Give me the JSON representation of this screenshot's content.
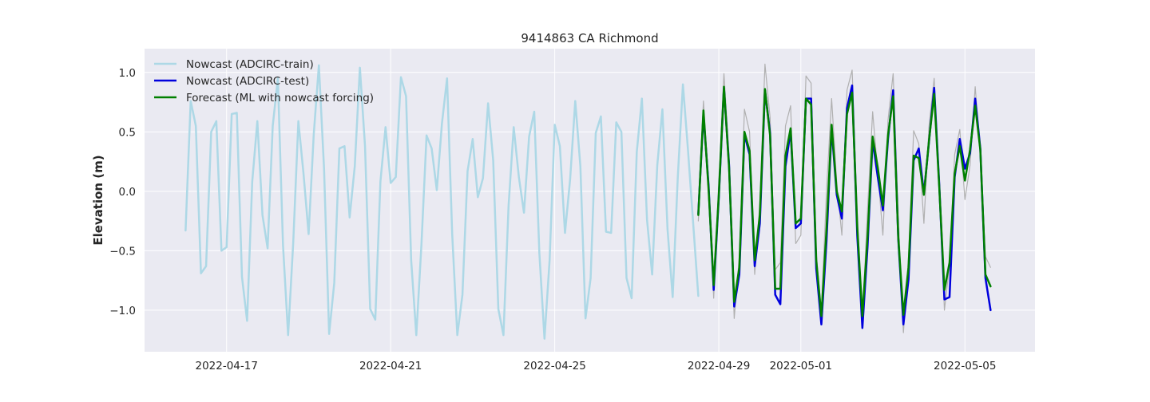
{
  "chart_data": {
    "type": "line",
    "title": "9414863 CA Richmond",
    "xlabel": "",
    "ylabel": "Elevation (m)",
    "xlim": [
      "2022-04-15T00:00",
      "2022-05-06T17:00"
    ],
    "ylim": [
      -1.35,
      1.2
    ],
    "x_ticks": [
      "2022-04-17",
      "2022-04-21",
      "2022-04-25",
      "2022-04-29",
      "2022-05-01",
      "2022-05-05"
    ],
    "y_ticks": [
      -1.0,
      -0.5,
      0.0,
      0.5,
      1.0
    ],
    "y_tick_labels": [
      "−1.0",
      "−0.5",
      "0.0",
      "0.5",
      "1.0"
    ],
    "grid": true,
    "legend_position": "top-left",
    "series": [
      {
        "name": "Nowcast (ADCIRC-train)",
        "color": "#add8e6",
        "x": [
          "2022-04-16T00:00",
          "2022-04-16T03:00",
          "2022-04-16T06:00",
          "2022-04-16T09:00",
          "2022-04-16T12:00",
          "2022-04-16T15:00",
          "2022-04-16T18:00",
          "2022-04-16T21:00",
          "2022-04-17T00:00",
          "2022-04-17T03:00",
          "2022-04-17T06:00",
          "2022-04-17T09:00",
          "2022-04-17T12:00",
          "2022-04-17T15:00",
          "2022-04-17T18:00",
          "2022-04-17T21:00",
          "2022-04-18T00:00",
          "2022-04-18T03:00",
          "2022-04-18T06:00",
          "2022-04-18T09:00",
          "2022-04-18T12:00",
          "2022-04-18T15:00",
          "2022-04-18T18:00",
          "2022-04-18T21:00",
          "2022-04-19T00:00",
          "2022-04-19T03:00",
          "2022-04-19T06:00",
          "2022-04-19T09:00",
          "2022-04-19T12:00",
          "2022-04-19T15:00",
          "2022-04-19T18:00",
          "2022-04-19T21:00",
          "2022-04-20T00:00",
          "2022-04-20T03:00",
          "2022-04-20T06:00",
          "2022-04-20T09:00",
          "2022-04-20T12:00",
          "2022-04-20T15:00",
          "2022-04-20T18:00",
          "2022-04-20T21:00",
          "2022-04-21T00:00",
          "2022-04-21T03:00",
          "2022-04-21T06:00",
          "2022-04-21T09:00",
          "2022-04-21T12:00",
          "2022-04-21T15:00",
          "2022-04-21T18:00",
          "2022-04-21T21:00",
          "2022-04-22T00:00",
          "2022-04-22T03:00",
          "2022-04-22T06:00",
          "2022-04-22T09:00",
          "2022-04-22T12:00",
          "2022-04-22T15:00",
          "2022-04-22T18:00",
          "2022-04-22T21:00",
          "2022-04-23T00:00",
          "2022-04-23T03:00",
          "2022-04-23T06:00",
          "2022-04-23T09:00",
          "2022-04-23T12:00",
          "2022-04-23T15:00",
          "2022-04-23T18:00",
          "2022-04-23T21:00",
          "2022-04-24T00:00",
          "2022-04-24T03:00",
          "2022-04-24T06:00",
          "2022-04-24T09:00",
          "2022-04-24T12:00",
          "2022-04-24T15:00",
          "2022-04-24T18:00",
          "2022-04-24T21:00",
          "2022-04-25T00:00",
          "2022-04-25T03:00",
          "2022-04-25T06:00",
          "2022-04-25T09:00",
          "2022-04-25T12:00",
          "2022-04-25T15:00",
          "2022-04-25T18:00",
          "2022-04-25T21:00",
          "2022-04-26T00:00",
          "2022-04-26T03:00",
          "2022-04-26T06:00",
          "2022-04-26T09:00",
          "2022-04-26T12:00",
          "2022-04-26T15:00",
          "2022-04-26T18:00",
          "2022-04-26T21:00",
          "2022-04-27T00:00",
          "2022-04-27T03:00",
          "2022-04-27T06:00",
          "2022-04-27T09:00",
          "2022-04-27T12:00",
          "2022-04-27T15:00",
          "2022-04-27T18:00",
          "2022-04-27T21:00",
          "2022-04-28T00:00",
          "2022-04-28T03:00",
          "2022-04-28T06:00",
          "2022-04-28T09:00",
          "2022-04-28T12:00",
          "2022-04-28T15:00",
          "2022-04-28T18:00",
          "2022-04-28T21:00"
        ],
        "values": [
          -0.33,
          0.76,
          0.55,
          -0.69,
          -0.63,
          0.5,
          0.59,
          -0.5,
          -0.47,
          0.65,
          0.66,
          -0.72,
          -1.09,
          0.08,
          0.59,
          -0.2,
          -0.48,
          0.55,
          0.95,
          -0.45,
          -1.21,
          -0.43,
          0.59,
          0.15,
          -0.36,
          0.48,
          1.06,
          0.2,
          -1.2,
          -0.77,
          0.36,
          0.38,
          -0.22,
          0.21,
          1.04,
          0.38,
          -0.99,
          -1.08,
          0.08,
          0.54,
          0.07,
          0.12,
          0.96,
          0.8,
          -0.58,
          -1.21,
          -0.45,
          0.47,
          0.36,
          0.01,
          0.57,
          0.95,
          -0.36,
          -1.21,
          -0.87,
          0.17,
          0.44,
          -0.05,
          0.11,
          0.74,
          0.26,
          -0.99,
          -1.21,
          -0.12,
          0.54,
          0.12,
          -0.18,
          0.46,
          0.67,
          -0.52,
          -1.24,
          -0.58,
          0.56,
          0.38,
          -0.35,
          0.1,
          0.76,
          0.21,
          -1.07,
          -0.73,
          0.49,
          0.63,
          -0.34,
          -0.35,
          0.58,
          0.5,
          -0.73,
          -0.9,
          0.33,
          0.78,
          -0.24,
          -0.7,
          0.22,
          0.69,
          -0.32,
          -0.89,
          0.12,
          0.9,
          0.34,
          -0.27,
          -0.88,
          null,
          null,
          null
        ]
      },
      {
        "name": "Nowcast (ADCIRC-test)",
        "color": "#0000dd",
        "x": [
          "2022-04-28T12:00",
          "2022-04-28T15:00",
          "2022-04-28T18:00",
          "2022-04-28T21:00",
          "2022-04-29T00:00",
          "2022-04-29T03:00",
          "2022-04-29T06:00",
          "2022-04-29T09:00",
          "2022-04-29T12:00",
          "2022-04-29T15:00",
          "2022-04-29T18:00",
          "2022-04-29T21:00",
          "2022-04-30T00:00",
          "2022-04-30T03:00",
          "2022-04-30T06:00",
          "2022-04-30T09:00",
          "2022-04-30T12:00",
          "2022-04-30T15:00",
          "2022-04-30T18:00",
          "2022-04-30T21:00",
          "2022-05-01T00:00",
          "2022-05-01T03:00",
          "2022-05-01T06:00",
          "2022-05-01T09:00",
          "2022-05-01T12:00",
          "2022-05-01T15:00",
          "2022-05-01T18:00",
          "2022-05-01T21:00",
          "2022-05-02T00:00",
          "2022-05-02T03:00",
          "2022-05-02T06:00",
          "2022-05-02T09:00",
          "2022-05-02T12:00",
          "2022-05-02T15:00",
          "2022-05-02T18:00",
          "2022-05-02T21:00",
          "2022-05-03T00:00",
          "2022-05-03T03:00",
          "2022-05-03T06:00",
          "2022-05-03T09:00",
          "2022-05-03T12:00",
          "2022-05-03T15:00",
          "2022-05-03T18:00",
          "2022-05-03T21:00",
          "2022-05-04T00:00",
          "2022-05-04T03:00",
          "2022-05-04T06:00",
          "2022-05-04T09:00",
          "2022-05-04T12:00",
          "2022-05-04T15:00",
          "2022-05-04T18:00",
          "2022-05-04T21:00",
          "2022-05-05T00:00",
          "2022-05-05T03:00",
          "2022-05-05T06:00",
          "2022-05-05T09:00",
          "2022-05-05T12:00",
          "2022-05-05T15:00",
          "2022-05-05T18:00",
          "2022-05-05T21:00",
          "2022-05-06T00:00",
          "2022-05-06T03:00",
          "2022-05-06T06:00",
          "2022-05-06T09:00",
          "2022-05-06T12:00",
          "2022-05-06T15:00"
        ],
        "values": [
          -0.19,
          0.65,
          0.05,
          -0.83,
          -0.05,
          0.87,
          0.22,
          -0.97,
          -0.7,
          0.48,
          0.31,
          -0.63,
          -0.27,
          0.85,
          0.49,
          -0.87,
          -0.95,
          0.21,
          0.51,
          -0.31,
          -0.27,
          0.78,
          0.78,
          -0.65,
          -1.12,
          -0.42,
          0.53,
          -0.03,
          -0.23,
          0.7,
          0.89,
          -0.37,
          -1.15,
          -0.47,
          0.43,
          0.12,
          -0.16,
          0.44,
          0.85,
          -0.4,
          -1.12,
          -0.74,
          0.26,
          0.36,
          -0.02,
          0.42,
          0.87,
          0.05,
          -0.91,
          -0.89,
          0.12,
          0.44,
          0.19,
          0.32,
          0.78,
          0.36,
          -0.73,
          -1.0,
          null,
          null,
          null,
          null,
          null,
          null,
          null,
          null
        ]
      },
      {
        "name": "Forecast (ML with nowcast forcing)",
        "color": "#008000",
        "x": [
          "2022-04-28T12:00",
          "2022-04-28T15:00",
          "2022-04-28T18:00",
          "2022-04-28T21:00",
          "2022-04-29T00:00",
          "2022-04-29T03:00",
          "2022-04-29T06:00",
          "2022-04-29T09:00",
          "2022-04-29T12:00",
          "2022-04-29T15:00",
          "2022-04-29T18:00",
          "2022-04-29T21:00",
          "2022-04-30T00:00",
          "2022-04-30T03:00",
          "2022-04-30T06:00",
          "2022-04-30T09:00",
          "2022-04-30T12:00",
          "2022-04-30T15:00",
          "2022-04-30T18:00",
          "2022-04-30T21:00",
          "2022-05-01T00:00",
          "2022-05-01T03:00",
          "2022-05-01T06:00",
          "2022-05-01T09:00",
          "2022-05-01T12:00",
          "2022-05-01T15:00",
          "2022-05-01T18:00",
          "2022-05-01T21:00",
          "2022-05-02T00:00",
          "2022-05-02T03:00",
          "2022-05-02T06:00",
          "2022-05-02T09:00",
          "2022-05-02T12:00",
          "2022-05-02T15:00",
          "2022-05-02T18:00",
          "2022-05-02T21:00",
          "2022-05-03T00:00",
          "2022-05-03T03:00",
          "2022-05-03T06:00",
          "2022-05-03T09:00",
          "2022-05-03T12:00",
          "2022-05-03T15:00",
          "2022-05-03T18:00",
          "2022-05-03T21:00",
          "2022-05-04T00:00",
          "2022-05-04T03:00",
          "2022-05-04T06:00",
          "2022-05-04T09:00",
          "2022-05-04T12:00",
          "2022-05-04T15:00",
          "2022-05-04T18:00",
          "2022-05-04T21:00",
          "2022-05-05T00:00",
          "2022-05-05T03:00",
          "2022-05-05T06:00",
          "2022-05-05T09:00",
          "2022-05-05T12:00",
          "2022-05-05T15:00",
          "2022-05-05T18:00",
          "2022-05-05T21:00"
        ],
        "values": [
          -0.2,
          0.68,
          0.02,
          -0.79,
          -0.03,
          0.88,
          0.2,
          -0.93,
          -0.64,
          0.5,
          0.34,
          -0.58,
          -0.2,
          0.86,
          0.47,
          -0.82,
          -0.82,
          0.3,
          0.53,
          -0.27,
          -0.23,
          0.78,
          0.73,
          -0.58,
          -1.05,
          -0.32,
          0.56,
          0.0,
          -0.17,
          0.65,
          0.83,
          -0.3,
          -1.05,
          -0.39,
          0.46,
          0.2,
          -0.12,
          0.47,
          0.8,
          -0.39,
          -1.04,
          -0.64,
          0.3,
          0.28,
          -0.03,
          0.43,
          0.82,
          0.03,
          -0.83,
          -0.6,
          0.15,
          0.38,
          0.09,
          0.35,
          0.72,
          0.35,
          -0.7,
          -0.8,
          null,
          null
        ]
      },
      {
        "name": "",
        "color": "#b0b0b0",
        "x": [
          "2022-04-28T12:00",
          "2022-04-28T15:00",
          "2022-04-28T18:00",
          "2022-04-28T21:00",
          "2022-04-29T00:00",
          "2022-04-29T03:00",
          "2022-04-29T06:00",
          "2022-04-29T09:00",
          "2022-04-29T12:00",
          "2022-04-29T15:00",
          "2022-04-29T18:00",
          "2022-04-29T21:00",
          "2022-04-30T00:00",
          "2022-04-30T03:00",
          "2022-04-30T06:00",
          "2022-04-30T09:00",
          "2022-04-30T12:00",
          "2022-04-30T15:00",
          "2022-04-30T18:00",
          "2022-04-30T21:00",
          "2022-05-01T00:00",
          "2022-05-01T03:00",
          "2022-05-01T06:00",
          "2022-05-01T09:00",
          "2022-05-01T12:00",
          "2022-05-01T15:00",
          "2022-05-01T18:00",
          "2022-05-01T21:00",
          "2022-05-02T00:00",
          "2022-05-02T03:00",
          "2022-05-02T06:00",
          "2022-05-02T09:00",
          "2022-05-02T12:00",
          "2022-05-02T15:00",
          "2022-05-02T18:00",
          "2022-05-02T21:00",
          "2022-05-03T00:00",
          "2022-05-03T03:00",
          "2022-05-03T06:00",
          "2022-05-03T09:00",
          "2022-05-03T12:00",
          "2022-05-03T15:00",
          "2022-05-03T18:00",
          "2022-05-03T21:00",
          "2022-05-04T00:00",
          "2022-05-04T03:00",
          "2022-05-04T06:00",
          "2022-05-04T09:00",
          "2022-05-04T12:00",
          "2022-05-04T15:00",
          "2022-05-04T18:00",
          "2022-05-04T21:00",
          "2022-05-05T00:00",
          "2022-05-05T03:00",
          "2022-05-05T06:00",
          "2022-05-05T09:00",
          "2022-05-05T12:00",
          "2022-05-05T15:00",
          "2022-05-05T18:00",
          "2022-05-05T21:00"
        ],
        "values": [
          -0.25,
          0.76,
          0.1,
          -0.9,
          0.1,
          0.99,
          0.3,
          -1.07,
          -0.55,
          0.69,
          0.5,
          -0.7,
          -0.1,
          1.07,
          0.62,
          -0.66,
          -0.6,
          0.55,
          0.72,
          -0.44,
          -0.37,
          0.97,
          0.91,
          -0.52,
          -1.02,
          0.0,
          0.78,
          0.07,
          -0.37,
          0.85,
          1.02,
          -0.18,
          -1.08,
          -0.16,
          0.67,
          0.16,
          -0.37,
          0.6,
          0.99,
          -0.2,
          -1.19,
          -0.55,
          0.51,
          0.4,
          -0.27,
          0.55,
          0.95,
          0.1,
          -1.0,
          -0.62,
          0.31,
          0.52,
          -0.07,
          0.22,
          0.88,
          0.34,
          -0.55,
          -0.64,
          null,
          null
        ]
      }
    ]
  }
}
